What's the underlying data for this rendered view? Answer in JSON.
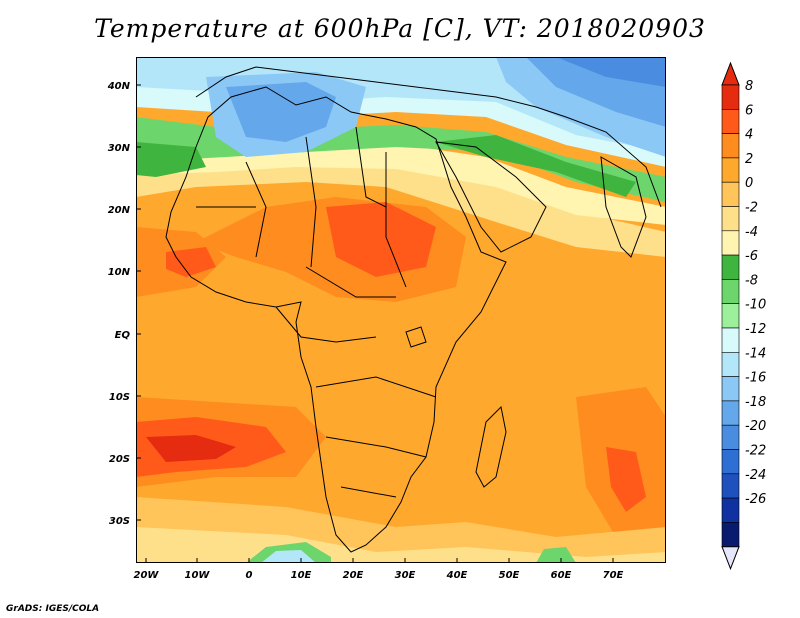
{
  "title": "Temperature at 600hPa [C], VT: 2018020903",
  "credit": "GrADS: IGES/COLA",
  "lat_labels": [
    "40N",
    "30N",
    "20N",
    "10N",
    "EQ",
    "10S",
    "20S",
    "30S"
  ],
  "lon_labels": [
    "20W",
    "10W",
    "0",
    "10E",
    "20E",
    "30E",
    "40E",
    "50E",
    "60E",
    "70E"
  ],
  "colorbar": {
    "labels": [
      "8",
      "6",
      "4",
      "2",
      "0",
      "-2",
      "-4",
      "-6",
      "-8",
      "-10",
      "-12",
      "-14",
      "-16",
      "-18",
      "-20",
      "-22",
      "-24",
      "-26"
    ],
    "colors": [
      "#e62c10",
      "#ff5a1a",
      "#ff8c1e",
      "#ffa82e",
      "#ffc45a",
      "#ffe08a",
      "#fff4b0",
      "#3fb43f",
      "#6cd66c",
      "#9cf09c",
      "#d8fafa",
      "#b4e6fa",
      "#8cc8f5",
      "#64a8eb",
      "#4a8ce0",
      "#2f6ed2",
      "#1e50be",
      "#0f32a0",
      "#081b6e"
    ],
    "top_color": "#e62c10",
    "bottom_color": "#e6e6fa"
  }
}
